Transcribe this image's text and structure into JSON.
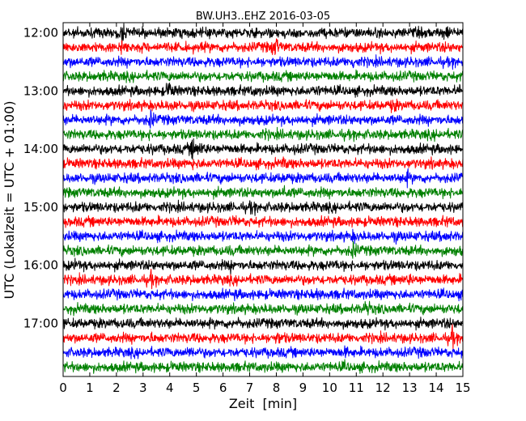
{
  "chart_data": {
    "type": "line",
    "title": "BW.UH3..EHZ 2016-03-05",
    "xlabel": "Zeit  [min]",
    "ylabel": "UTC (Lokalzeit = UTC + 01:00)",
    "xlim": [
      0,
      15
    ],
    "x_ticks": [
      "0",
      "1",
      "2",
      "3",
      "4",
      "5",
      "6",
      "7",
      "8",
      "9",
      "10",
      "11",
      "12",
      "13",
      "14",
      "15"
    ],
    "y_ticks": [
      "12:00",
      "13:00",
      "14:00",
      "15:00",
      "16:00",
      "17:00"
    ],
    "trace_colors": [
      "#000000",
      "#ff0000",
      "#0000ff",
      "#008000"
    ],
    "series": [
      {
        "start": "12:00",
        "events": [
          [
            2.2,
            3.0
          ],
          [
            14.4,
            2.2
          ],
          [
            13.3,
            1.2
          ]
        ]
      },
      {
        "start": "12:15",
        "events": [
          [
            2.2,
            2.2
          ],
          [
            8.0,
            2.5
          ],
          [
            7.8,
            1.5
          ],
          [
            14.3,
            1.2
          ]
        ]
      },
      {
        "start": "12:30",
        "events": [
          [
            0.3,
            1.2
          ],
          [
            10.9,
            2.0
          ],
          [
            14.7,
            1.2
          ]
        ]
      },
      {
        "start": "12:45",
        "events": [
          [
            1.6,
            1.4
          ],
          [
            4.0,
            1.2
          ],
          [
            10.0,
            1.2
          ],
          [
            12.7,
            1.0
          ]
        ]
      },
      {
        "start": "13:00",
        "events": [
          [
            4.0,
            2.8
          ],
          [
            7.2,
            1.5
          ],
          [
            9.5,
            1.6
          ],
          [
            14.9,
            1.6
          ]
        ]
      },
      {
        "start": "13:15",
        "events": [
          [
            12.4,
            2.0
          ],
          [
            4.1,
            1.5
          ],
          [
            8.6,
            1.2
          ],
          [
            9.0,
            1.0
          ]
        ]
      },
      {
        "start": "13:30",
        "events": [
          [
            3.3,
            2.6
          ],
          [
            6.5,
            1.4
          ],
          [
            9.0,
            1.2
          ],
          [
            14.2,
            1.0
          ]
        ]
      },
      {
        "start": "13:45",
        "events": [
          [
            3.2,
            1.2
          ],
          [
            7.6,
            1.3
          ],
          [
            14.0,
            1.3
          ]
        ]
      },
      {
        "start": "14:00",
        "events": [
          [
            4.9,
            3.5
          ],
          [
            5.2,
            1.8
          ],
          [
            3.4,
            1.2
          ],
          [
            8.7,
            1.2
          ]
        ]
      },
      {
        "start": "14:15",
        "events": [
          [
            4.9,
            1.5
          ],
          [
            8.3,
            1.4
          ],
          [
            11.7,
            1.0
          ],
          [
            13.9,
            1.3
          ]
        ]
      },
      {
        "start": "14:30",
        "events": [
          [
            12.9,
            2.0
          ],
          [
            8.3,
            1.5
          ],
          [
            4.9,
            1.2
          ],
          [
            6.4,
            1.0
          ]
        ]
      },
      {
        "start": "14:45",
        "events": [
          [
            8.3,
            2.0
          ],
          [
            7.3,
            1.2
          ],
          [
            2.5,
            1.2
          ],
          [
            10.2,
            1.0
          ]
        ]
      },
      {
        "start": "15:00",
        "events": [
          [
            7.1,
            1.8
          ],
          [
            2.7,
            1.2
          ],
          [
            9.3,
            1.0
          ]
        ]
      },
      {
        "start": "15:15",
        "events": [
          [
            6.4,
            1.4
          ],
          [
            10.0,
            1.2
          ],
          [
            14.4,
            1.2
          ]
        ]
      },
      {
        "start": "15:30",
        "events": [
          [
            10.9,
            1.6
          ],
          [
            12.5,
            1.3
          ],
          [
            14.4,
            1.6
          ]
        ]
      },
      {
        "start": "15:45",
        "events": [
          [
            10.9,
            2.5
          ],
          [
            6.3,
            1.2
          ],
          [
            2.2,
            1.0
          ],
          [
            14.8,
            1.3
          ]
        ]
      },
      {
        "start": "16:00",
        "events": [
          [
            0.5,
            1.4
          ],
          [
            6.3,
            1.6
          ],
          [
            10.3,
            1.2
          ]
        ]
      },
      {
        "start": "16:15",
        "events": [
          [
            3.3,
            2.0
          ],
          [
            13.0,
            1.5
          ],
          [
            6.0,
            1.2
          ],
          [
            9.9,
            1.0
          ]
        ]
      },
      {
        "start": "16:30",
        "events": [
          [
            9.5,
            1.4
          ],
          [
            6.5,
            1.2
          ],
          [
            4.1,
            1.0
          ]
        ]
      },
      {
        "start": "16:45",
        "events": [
          [
            11.4,
            2.4
          ],
          [
            0.4,
            1.2
          ],
          [
            7.8,
            1.1
          ],
          [
            14.9,
            1.2
          ]
        ]
      },
      {
        "start": "17:00",
        "events": [
          [
            6.5,
            1.5
          ],
          [
            4.8,
            1.2
          ],
          [
            10.4,
            1.2
          ],
          [
            14.4,
            1.3
          ]
        ]
      },
      {
        "start": "17:15",
        "events": [
          [
            14.6,
            2.6
          ],
          [
            8.1,
            1.8
          ],
          [
            3.3,
            1.3
          ],
          [
            4.8,
            1.2
          ]
        ]
      },
      {
        "start": "17:30",
        "events": [
          [
            4.8,
            1.8
          ],
          [
            10.6,
            1.5
          ],
          [
            13.5,
            1.4
          ],
          [
            2.4,
            1.0
          ]
        ]
      },
      {
        "start": "17:45",
        "events": [
          [
            10.6,
            1.3
          ],
          [
            4.2,
            1.2
          ],
          [
            7.5,
            1.2
          ],
          [
            14.4,
            1.1
          ]
        ]
      }
    ]
  }
}
